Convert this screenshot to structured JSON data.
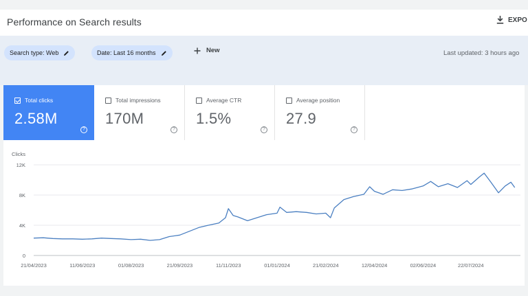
{
  "header": {
    "title": "Performance on Search results",
    "export_label": "EXPO"
  },
  "filters": {
    "search_type": "Search type: Web",
    "date": "Date: Last 16 months",
    "new_label": "New",
    "last_updated": "Last updated: 3 hours ago"
  },
  "metrics": [
    {
      "label": "Total clicks",
      "value": "2.58M",
      "selected": true
    },
    {
      "label": "Total impressions",
      "value": "170M",
      "selected": false
    },
    {
      "label": "Average CTR",
      "value": "1.5%",
      "selected": false
    },
    {
      "label": "Average position",
      "value": "27.9",
      "selected": false
    }
  ],
  "colors": {
    "accent": "#4285f4",
    "line": "#4a7fc1",
    "filter_bg": "#e8eef6",
    "chip_bg": "#d3e3fd"
  },
  "icons": [
    "download-icon",
    "pencil-icon",
    "plus-icon",
    "checkbox-icon",
    "help-icon"
  ],
  "chart_data": {
    "type": "line",
    "ylabel": "Clicks",
    "ylim": [
      0,
      12000
    ],
    "yticks": [
      "0",
      "4K",
      "8K",
      "12K"
    ],
    "xticks": [
      "21/04/2023",
      "11/06/2023",
      "01/08/2023",
      "21/09/2023",
      "11/11/2023",
      "01/01/2024",
      "21/02/2024",
      "12/04/2024",
      "02/06/2024",
      "22/07/2024"
    ],
    "grid": true,
    "series": [
      {
        "points": [
          [
            "21/04/2023",
            2300
          ],
          [
            "01/05/2023",
            2350
          ],
          [
            "11/05/2023",
            2250
          ],
          [
            "21/05/2023",
            2200
          ],
          [
            "01/06/2023",
            2200
          ],
          [
            "11/06/2023",
            2150
          ],
          [
            "21/06/2023",
            2200
          ],
          [
            "01/07/2023",
            2300
          ],
          [
            "11/07/2023",
            2250
          ],
          [
            "21/07/2023",
            2200
          ],
          [
            "01/08/2023",
            2100
          ],
          [
            "11/08/2023",
            2150
          ],
          [
            "21/08/2023",
            2000
          ],
          [
            "31/08/2023",
            2100
          ],
          [
            "10/09/2023",
            2500
          ],
          [
            "21/09/2023",
            2700
          ],
          [
            "01/10/2023",
            3200
          ],
          [
            "11/10/2023",
            3700
          ],
          [
            "21/10/2023",
            4000
          ],
          [
            "01/11/2023",
            4300
          ],
          [
            "08/11/2023",
            5000
          ],
          [
            "11/11/2023",
            6200
          ],
          [
            "16/11/2023",
            5300
          ],
          [
            "21/11/2023",
            5100
          ],
          [
            "01/12/2023",
            4600
          ],
          [
            "11/12/2023",
            5000
          ],
          [
            "21/12/2023",
            5400
          ],
          [
            "01/01/2024",
            5600
          ],
          [
            "04/01/2024",
            6400
          ],
          [
            "11/01/2024",
            5700
          ],
          [
            "21/01/2024",
            5800
          ],
          [
            "01/02/2024",
            5700
          ],
          [
            "11/02/2024",
            5500
          ],
          [
            "21/02/2024",
            5600
          ],
          [
            "26/02/2024",
            5000
          ],
          [
            "01/03/2024",
            6300
          ],
          [
            "11/03/2024",
            7400
          ],
          [
            "21/03/2024",
            7800
          ],
          [
            "01/04/2024",
            8100
          ],
          [
            "07/04/2024",
            9100
          ],
          [
            "12/04/2024",
            8500
          ],
          [
            "21/04/2024",
            8100
          ],
          [
            "01/05/2024",
            8700
          ],
          [
            "11/05/2024",
            8600
          ],
          [
            "21/05/2024",
            8800
          ],
          [
            "02/06/2024",
            9200
          ],
          [
            "10/06/2024",
            9800
          ],
          [
            "18/06/2024",
            9100
          ],
          [
            "28/06/2024",
            9500
          ],
          [
            "08/07/2024",
            9000
          ],
          [
            "18/07/2024",
            9900
          ],
          [
            "22/07/2024",
            9400
          ],
          [
            "31/07/2024",
            10400
          ],
          [
            "05/08/2024",
            10900
          ],
          [
            "12/08/2024",
            9700
          ],
          [
            "20/08/2024",
            8300
          ],
          [
            "27/08/2024",
            9200
          ],
          [
            "02/09/2024",
            9700
          ],
          [
            "06/09/2024",
            9000
          ]
        ]
      }
    ]
  }
}
